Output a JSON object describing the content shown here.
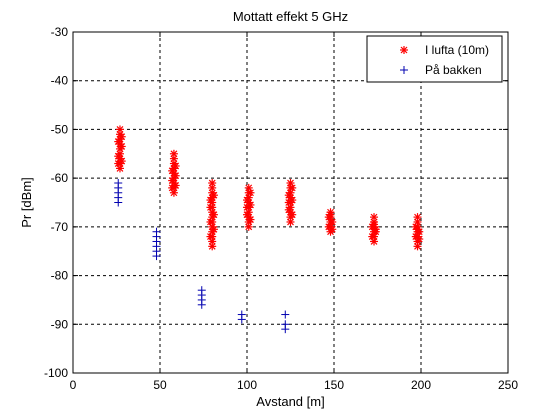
{
  "chart_data": {
    "type": "scatter",
    "title": "Mottatt effekt 5 GHz",
    "xlabel": "Avstand [m]",
    "ylabel": "Pr [dBm]",
    "xlim": [
      0,
      250
    ],
    "ylim": [
      -100,
      -30
    ],
    "xticks": [
      0,
      50,
      100,
      150,
      200,
      250
    ],
    "yticks": [
      -30,
      -40,
      -50,
      -60,
      -70,
      -80,
      -90,
      -100
    ],
    "xtick_labels": [
      "0",
      "50",
      "100",
      "150",
      "200",
      "250"
    ],
    "ytick_labels": [
      "-30",
      "-40",
      "-50",
      "-60",
      "-70",
      "-80",
      "-90",
      "-100"
    ],
    "grid": "dashed",
    "legend_position": "top-right",
    "series": [
      {
        "name": "I lufta (10m)",
        "marker": "*",
        "color": "#ff0000",
        "points": [
          [
            27,
            -50
          ],
          [
            27,
            -51
          ],
          [
            27,
            -52
          ],
          [
            27,
            -53
          ],
          [
            27,
            -54
          ],
          [
            27,
            -55
          ],
          [
            27,
            -56
          ],
          [
            27,
            -57
          ],
          [
            27,
            -58
          ],
          [
            26,
            -52.5
          ],
          [
            28,
            -53.5
          ],
          [
            26,
            -55.5
          ],
          [
            28,
            -56.5
          ],
          [
            26,
            -57
          ],
          [
            28,
            -51.5
          ],
          [
            58,
            -55
          ],
          [
            58,
            -56
          ],
          [
            58,
            -57
          ],
          [
            58,
            -58
          ],
          [
            58,
            -59
          ],
          [
            58,
            -60
          ],
          [
            58,
            -61
          ],
          [
            58,
            -62
          ],
          [
            58,
            -63
          ],
          [
            57,
            -58.5
          ],
          [
            59,
            -59.5
          ],
          [
            57,
            -60.5
          ],
          [
            59,
            -61.5
          ],
          [
            57,
            -62
          ],
          [
            59,
            -57.5
          ],
          [
            80,
            -61
          ],
          [
            80,
            -62
          ],
          [
            80,
            -63
          ],
          [
            80,
            -64
          ],
          [
            80,
            -65
          ],
          [
            80,
            -66
          ],
          [
            80,
            -67
          ],
          [
            80,
            -68
          ],
          [
            80,
            -69
          ],
          [
            80,
            -70
          ],
          [
            80,
            -71
          ],
          [
            80,
            -72
          ],
          [
            80,
            -73
          ],
          [
            80,
            -74
          ],
          [
            79,
            -66
          ],
          [
            81,
            -67.5
          ],
          [
            79,
            -69
          ],
          [
            81,
            -70.5
          ],
          [
            79,
            -72
          ],
          [
            81,
            -63.5
          ],
          [
            79,
            -64.5
          ],
          [
            101,
            -62
          ],
          [
            101,
            -63
          ],
          [
            101,
            -64
          ],
          [
            101,
            -65
          ],
          [
            101,
            -66
          ],
          [
            101,
            -67
          ],
          [
            101,
            -68
          ],
          [
            101,
            -69
          ],
          [
            101,
            -70
          ],
          [
            100,
            -64.5
          ],
          [
            102,
            -65.5
          ],
          [
            100,
            -67.5
          ],
          [
            102,
            -68.5
          ],
          [
            100,
            -66
          ],
          [
            102,
            -63
          ],
          [
            125,
            -61
          ],
          [
            125,
            -62
          ],
          [
            125,
            -63
          ],
          [
            125,
            -64
          ],
          [
            125,
            -65
          ],
          [
            125,
            -66
          ],
          [
            125,
            -67
          ],
          [
            125,
            -68
          ],
          [
            125,
            -69
          ],
          [
            124,
            -63.5
          ],
          [
            126,
            -64.5
          ],
          [
            124,
            -66.5
          ],
          [
            126,
            -67.5
          ],
          [
            124,
            -65
          ],
          [
            126,
            -62
          ],
          [
            148,
            -67
          ],
          [
            148,
            -68
          ],
          [
            148,
            -69
          ],
          [
            148,
            -70
          ],
          [
            148,
            -71
          ],
          [
            147,
            -68
          ],
          [
            149,
            -69
          ],
          [
            147,
            -70
          ],
          [
            149,
            -70.5
          ],
          [
            148,
            -67.5
          ],
          [
            173,
            -68
          ],
          [
            173,
            -69
          ],
          [
            173,
            -70
          ],
          [
            173,
            -71
          ],
          [
            173,
            -72
          ],
          [
            173,
            -73
          ],
          [
            172,
            -70
          ],
          [
            174,
            -71
          ],
          [
            172,
            -72
          ],
          [
            174,
            -70.5
          ],
          [
            173,
            -69.5
          ],
          [
            198,
            -68
          ],
          [
            198,
            -69
          ],
          [
            198,
            -70
          ],
          [
            198,
            -71
          ],
          [
            198,
            -72
          ],
          [
            198,
            -73
          ],
          [
            198,
            -74
          ],
          [
            197,
            -70
          ],
          [
            199,
            -71
          ],
          [
            197,
            -72
          ],
          [
            199,
            -72.5
          ],
          [
            198,
            -70.5
          ]
        ]
      },
      {
        "name": "På bakken",
        "marker": "+",
        "color": "#0000b0",
        "points": [
          [
            26,
            -61
          ],
          [
            26,
            -62
          ],
          [
            26,
            -63
          ],
          [
            26,
            -64
          ],
          [
            26,
            -65
          ],
          [
            48,
            -71
          ],
          [
            48,
            -72
          ],
          [
            48,
            -73
          ],
          [
            48,
            -74
          ],
          [
            48,
            -75
          ],
          [
            48,
            -76
          ],
          [
            74,
            -83
          ],
          [
            74,
            -84
          ],
          [
            74,
            -85
          ],
          [
            74,
            -86
          ],
          [
            97,
            -88
          ],
          [
            97,
            -89
          ],
          [
            122,
            -88
          ],
          [
            122,
            -90
          ],
          [
            122,
            -91
          ]
        ]
      }
    ]
  }
}
